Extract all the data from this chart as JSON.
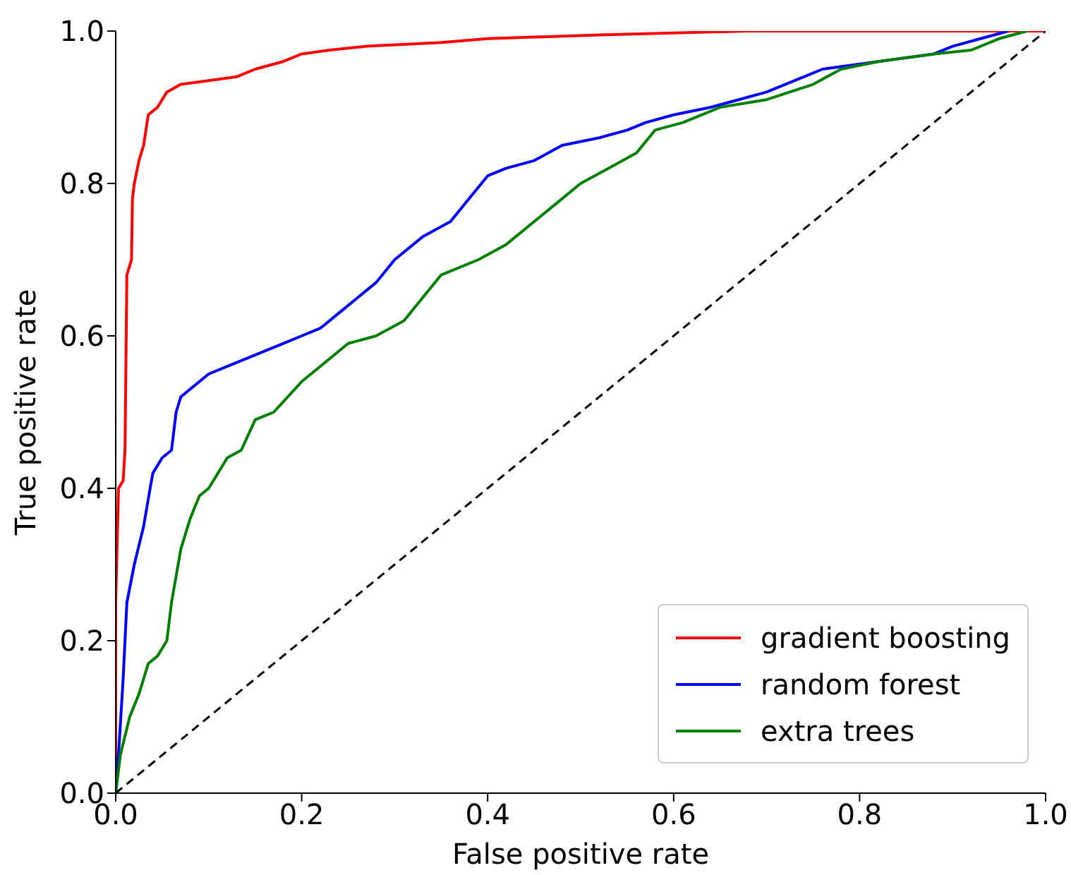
{
  "chart_data": {
    "type": "line",
    "xlabel": "False positive rate",
    "ylabel": "True positive rate",
    "xlim": [
      0,
      1
    ],
    "ylim": [
      0,
      1
    ],
    "xticks": [
      {
        "value": 0,
        "label": "0.0"
      },
      {
        "value": 0.2,
        "label": "0.2"
      },
      {
        "value": 0.4,
        "label": "0.4"
      },
      {
        "value": 0.6,
        "label": "0.6"
      },
      {
        "value": 0.8,
        "label": "0.8"
      },
      {
        "value": 1,
        "label": "1.0"
      }
    ],
    "yticks": [
      {
        "value": 0,
        "label": "0.0"
      },
      {
        "value": 0.2,
        "label": "0.2"
      },
      {
        "value": 0.4,
        "label": "0.4"
      },
      {
        "value": 0.6,
        "label": "0.6"
      },
      {
        "value": 0.8,
        "label": "0.8"
      },
      {
        "value": 1,
        "label": "1.0"
      }
    ],
    "legend": "bottom right",
    "marker": "none",
    "series": [
      {
        "name": "gradient boosting",
        "color": "#ff0000",
        "x": [
          0,
          0,
          0.003,
          0.008,
          0.01,
          0.012,
          0.017,
          0.018,
          0.02,
          0.025,
          0.03,
          0.035,
          0.045,
          0.055,
          0.07,
          0.1,
          0.13,
          0.15,
          0.18,
          0.2,
          0.23,
          0.27,
          0.35,
          0.4,
          0.52,
          0.68,
          1
        ],
        "values": [
          0,
          0.25,
          0.4,
          0.41,
          0.45,
          0.68,
          0.7,
          0.78,
          0.8,
          0.83,
          0.85,
          0.89,
          0.9,
          0.92,
          0.93,
          0.935,
          0.94,
          0.95,
          0.96,
          0.97,
          0.975,
          0.98,
          0.985,
          0.99,
          0.995,
          1,
          1
        ]
      },
      {
        "name": "random forest",
        "color": "#0000ff",
        "x": [
          0,
          0.003,
          0.008,
          0.012,
          0.02,
          0.03,
          0.037,
          0.04,
          0.05,
          0.06,
          0.065,
          0.07,
          0.09,
          0.1,
          0.12,
          0.14,
          0.16,
          0.18,
          0.2,
          0.22,
          0.24,
          0.26,
          0.28,
          0.3,
          0.33,
          0.36,
          0.38,
          0.4,
          0.42,
          0.45,
          0.48,
          0.52,
          0.55,
          0.57,
          0.6,
          0.64,
          0.67,
          0.7,
          0.72,
          0.74,
          0.76,
          0.82,
          0.88,
          0.9,
          0.93,
          0.96
        ],
        "values": [
          0,
          0.05,
          0.15,
          0.25,
          0.3,
          0.35,
          0.4,
          0.42,
          0.44,
          0.45,
          0.5,
          0.52,
          0.54,
          0.55,
          0.56,
          0.57,
          0.58,
          0.59,
          0.6,
          0.61,
          0.63,
          0.65,
          0.67,
          0.7,
          0.73,
          0.75,
          0.78,
          0.81,
          0.82,
          0.83,
          0.85,
          0.86,
          0.87,
          0.88,
          0.89,
          0.9,
          0.91,
          0.92,
          0.93,
          0.94,
          0.95,
          0.96,
          0.97,
          0.98,
          0.99,
          1
        ]
      },
      {
        "name": "extra trees",
        "color": "#008000",
        "x": [
          0,
          0.005,
          0.015,
          0.025,
          0.035,
          0.045,
          0.055,
          0.06,
          0.07,
          0.08,
          0.09,
          0.1,
          0.12,
          0.135,
          0.15,
          0.17,
          0.2,
          0.22,
          0.25,
          0.28,
          0.31,
          0.33,
          0.35,
          0.39,
          0.42,
          0.45,
          0.48,
          0.5,
          0.53,
          0.56,
          0.58,
          0.61,
          0.65,
          0.7,
          0.75,
          0.78,
          0.82,
          0.88,
          0.92,
          0.95,
          0.98
        ],
        "values": [
          0,
          0.05,
          0.1,
          0.13,
          0.17,
          0.18,
          0.2,
          0.25,
          0.32,
          0.36,
          0.39,
          0.4,
          0.44,
          0.45,
          0.49,
          0.5,
          0.54,
          0.56,
          0.59,
          0.6,
          0.62,
          0.65,
          0.68,
          0.7,
          0.72,
          0.75,
          0.78,
          0.8,
          0.82,
          0.84,
          0.87,
          0.88,
          0.9,
          0.91,
          0.93,
          0.95,
          0.96,
          0.97,
          0.975,
          0.99,
          1
        ]
      },
      {
        "color": "#000000",
        "line_style": "dashed",
        "x": [
          0,
          1
        ],
        "values": [
          0,
          1
        ]
      }
    ]
  }
}
